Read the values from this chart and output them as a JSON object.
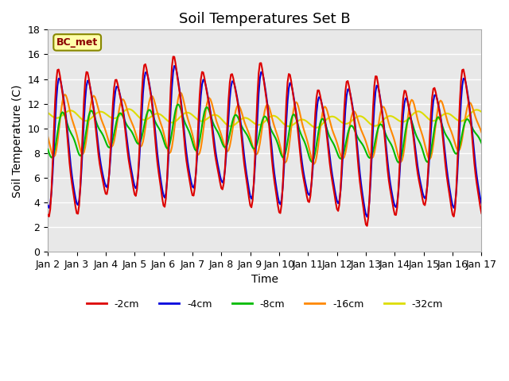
{
  "title": "Soil Temperatures Set B",
  "xlabel": "Time",
  "ylabel": "Soil Temperature (C)",
  "xlim": [
    0,
    15
  ],
  "ylim": [
    0,
    18
  ],
  "annotation": "BC_met",
  "legend_labels": [
    "-2cm",
    "-4cm",
    "-8cm",
    "-16cm",
    "-32cm"
  ],
  "line_colors": [
    "#dd0000",
    "#0000dd",
    "#00bb00",
    "#ff8800",
    "#dddd00"
  ],
  "line_widths": [
    1.5,
    1.5,
    1.5,
    1.5,
    1.5
  ],
  "xtick_labels": [
    "Jan 2",
    "Jan 3",
    "Jan 4",
    "Jan 5",
    "Jan 6",
    "Jan 7",
    "Jan 8",
    "Jan 9",
    "Jan 10",
    "Jan 11",
    "Jan 12",
    "Jan 13",
    "Jan 14",
    "Jan 15",
    "Jan 16",
    "Jan 17"
  ],
  "background_color": "#ffffff",
  "plot_bg_color": "#e8e8e8",
  "title_fontsize": 13,
  "axis_fontsize": 10,
  "tick_fontsize": 9,
  "grid_color": "#ffffff",
  "yticks": [
    0,
    2,
    4,
    6,
    8,
    10,
    12,
    14,
    16,
    18
  ],
  "legend_line_style": "-"
}
